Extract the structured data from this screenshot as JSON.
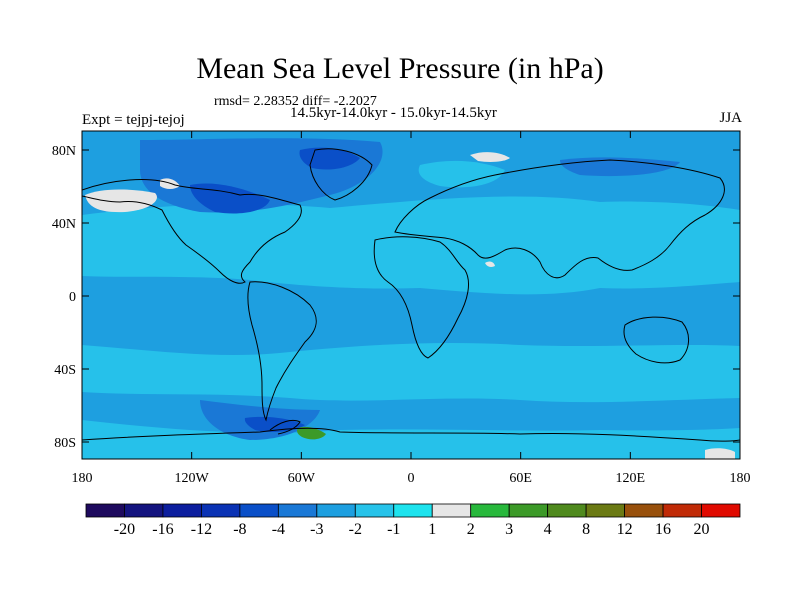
{
  "title": "Mean Sea Level Pressure (in hPa)",
  "stats": "rmsd= 2.28352 diff= -2.2027",
  "period": "14.5kyr-14.0kyr - 15.0kyr-14.5kyr",
  "experiment": "Expt = tejpj-tejoj",
  "season": "JJA",
  "axes": {
    "lat_ticks": [
      "80N",
      "40N",
      "0",
      "40S",
      "80S"
    ],
    "lon_ticks": [
      "180",
      "120W",
      "60W",
      "0",
      "60E",
      "120E",
      "180"
    ]
  },
  "colorbar": {
    "labels": [
      "-20",
      "-16",
      "-12",
      "-8",
      "-4",
      "-3",
      "-2",
      "-1",
      "1",
      "2",
      "3",
      "4",
      "8",
      "12",
      "16",
      "20"
    ],
    "colors": [
      "#1e0a5e",
      "#14147f",
      "#0c1e9e",
      "#0a32b4",
      "#0a4fc8",
      "#1a78d6",
      "#1d9fe0",
      "#27c3ea",
      "#1ee3ee",
      "#e6e6e6",
      "#28b83c",
      "#3c9a28",
      "#4f8a1e",
      "#6b7a14",
      "#98500c",
      "#c02a06",
      "#e00a00"
    ]
  },
  "map_colors": {
    "background": "#1e9fe0",
    "light": "#26c1ea",
    "dark": "#1a78d6",
    "darker": "#0a4fc8",
    "white": "#e6e6e6",
    "green": "#3c9a28"
  }
}
